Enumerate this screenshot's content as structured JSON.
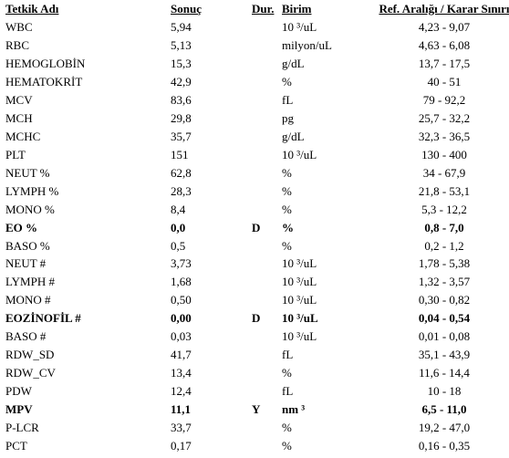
{
  "table": {
    "header": [
      "Tetkik Adı",
      "Sonuç",
      "Dur.",
      "Birim",
      "Ref. Aralığı / Karar Sınırı"
    ],
    "rows": [
      [
        "WBC",
        "5,94",
        null,
        "10 ³/uL",
        "4,23 - 9,07"
      ],
      [
        "RBC",
        "5,13",
        null,
        "milyon/uL",
        "4,63 - 6,08"
      ],
      [
        "HEMOGLOBİN",
        "15,3",
        null,
        "g/dL",
        "13,7 - 17,5"
      ],
      [
        "HEMATOKRİT",
        "42,9",
        null,
        "%",
        "40 - 51"
      ],
      [
        "MCV",
        "83,6",
        null,
        "fL",
        "79 - 92,2"
      ],
      [
        "MCH",
        "29,8",
        null,
        "pg",
        "25,7 - 32,2"
      ],
      [
        "MCHC",
        "35,7",
        null,
        "g/dL",
        "32,3 - 36,5"
      ],
      [
        "PLT",
        "151",
        null,
        "10 ³/uL",
        "130 - 400"
      ],
      [
        "NEUT %",
        "62,8",
        null,
        "%",
        "34 - 67,9"
      ],
      [
        "LYMPH %",
        "28,3",
        null,
        "%",
        "21,8 - 53,1"
      ],
      [
        "MONO %",
        "8,4",
        null,
        "%",
        "5,3 - 12,2"
      ],
      [
        "EO %",
        "0,0",
        "D",
        "%",
        "0,8 - 7,0"
      ],
      [
        "BASO %",
        "0,5",
        null,
        "%",
        "0,2 - 1,2"
      ],
      [
        "NEUT #",
        "3,73",
        null,
        "10 ³/uL",
        "1,78 - 5,38"
      ],
      [
        "LYMPH #",
        "1,68",
        null,
        "10 ³/uL",
        "1,32 - 3,57"
      ],
      [
        "MONO #",
        "0,50",
        null,
        "10 ³/uL",
        "0,30 - 0,82"
      ],
      [
        "EOZİNOFİL #",
        "0,00",
        "D",
        "10 ³/uL",
        "0,04 - 0,54"
      ],
      [
        "BASO #",
        "0,03",
        null,
        "10 ³/uL",
        "0,01 - 0,08"
      ],
      [
        "RDW_SD",
        "41,7",
        null,
        "fL",
        "35,1 - 43,9"
      ],
      [
        "RDW_CV",
        "13,4",
        null,
        "%",
        "11,6 - 14,4"
      ],
      [
        "PDW",
        "12,4",
        null,
        "fL",
        "10 - 18"
      ],
      [
        "MPV",
        "11,1",
        "Y",
        "nm ³",
        "6,5 - 11,0"
      ],
      [
        "P-LCR",
        "33,7",
        null,
        "%",
        "19,2 - 47,0"
      ],
      [
        "PCT",
        "0,17",
        null,
        "%",
        "0,16 - 0,35"
      ]
    ]
  }
}
